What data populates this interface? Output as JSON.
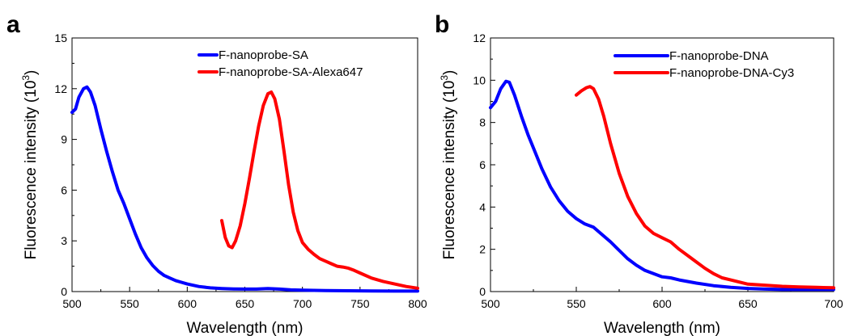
{
  "chart_data": [
    {
      "type": "line",
      "panel_label": "a",
      "xlabel": "Wavelength (nm)",
      "ylabel": "Fluorescence intensity (10",
      "ylabel_sup": "3",
      "ylabel_end": ")",
      "xlim": [
        500,
        800
      ],
      "ylim": [
        0,
        15
      ],
      "xticks": [
        "500",
        "550",
        "600",
        "650",
        "700",
        "750",
        "800"
      ],
      "yticks": [
        "0",
        "3",
        "6",
        "9",
        "12",
        "15"
      ],
      "legend_position": "top-right",
      "series": [
        {
          "name": "F-nanoprobe-SA",
          "color": "#0000ff",
          "x": [
            500,
            503,
            506,
            510,
            513,
            516,
            520,
            525,
            530,
            535,
            540,
            545,
            550,
            555,
            560,
            565,
            570,
            575,
            580,
            585,
            590,
            595,
            600,
            610,
            620,
            630,
            640,
            650,
            660,
            670,
            680,
            690,
            700,
            720,
            740,
            760,
            780,
            800
          ],
          "y": [
            10.6,
            10.8,
            11.5,
            12.0,
            12.1,
            11.8,
            11.0,
            9.6,
            8.3,
            7.1,
            6.0,
            5.2,
            4.3,
            3.4,
            2.6,
            2.0,
            1.55,
            1.2,
            0.95,
            0.8,
            0.65,
            0.55,
            0.45,
            0.3,
            0.22,
            0.18,
            0.16,
            0.15,
            0.15,
            0.18,
            0.15,
            0.1,
            0.08,
            0.06,
            0.05,
            0.04,
            0.03,
            0.03
          ]
        },
        {
          "name": "F-nanoprobe-SA-Alexa647",
          "color": "#ff0000",
          "x": [
            630,
            633,
            636,
            639,
            642,
            646,
            650,
            654,
            658,
            662,
            666,
            670,
            673,
            676,
            680,
            684,
            688,
            692,
            696,
            700,
            705,
            710,
            715,
            720,
            725,
            730,
            735,
            740,
            745,
            750,
            760,
            770,
            780,
            790,
            800
          ],
          "y": [
            4.2,
            3.2,
            2.7,
            2.6,
            3.0,
            3.9,
            5.2,
            6.7,
            8.3,
            9.8,
            11.0,
            11.7,
            11.8,
            11.4,
            10.2,
            8.3,
            6.3,
            4.7,
            3.6,
            2.9,
            2.5,
            2.2,
            1.95,
            1.8,
            1.65,
            1.5,
            1.45,
            1.38,
            1.25,
            1.1,
            0.8,
            0.6,
            0.45,
            0.3,
            0.2
          ]
        }
      ]
    },
    {
      "type": "line",
      "panel_label": "b",
      "xlabel": "Wavelength (nm)",
      "ylabel": "Fluorescence intensity (10",
      "ylabel_sup": "3",
      "ylabel_end": ")",
      "xlim": [
        500,
        700
      ],
      "ylim": [
        0,
        12
      ],
      "xticks": [
        "500",
        "550",
        "600",
        "650",
        "700"
      ],
      "yticks": [
        "0",
        "2",
        "4",
        "6",
        "8",
        "10",
        "12"
      ],
      "legend_position": "top-right",
      "series": [
        {
          "name": "F-nanoprobe-DNA",
          "color": "#0000ff",
          "x": [
            500,
            503,
            506,
            509,
            511,
            514,
            518,
            522,
            526,
            530,
            535,
            540,
            545,
            550,
            555,
            560,
            565,
            570,
            575,
            580,
            585,
            590,
            595,
            600,
            605,
            610,
            620,
            630,
            640,
            650,
            660,
            670,
            680,
            690,
            700
          ],
          "y": [
            8.7,
            9.0,
            9.6,
            9.95,
            9.9,
            9.3,
            8.3,
            7.4,
            6.6,
            5.8,
            4.95,
            4.3,
            3.8,
            3.45,
            3.2,
            3.05,
            2.7,
            2.35,
            1.95,
            1.55,
            1.25,
            1.0,
            0.85,
            0.7,
            0.65,
            0.55,
            0.4,
            0.28,
            0.2,
            0.15,
            0.12,
            0.1,
            0.1,
            0.1,
            0.1
          ]
        },
        {
          "name": "F-nanoprobe-DNA-Cy3",
          "color": "#ff0000",
          "x": [
            550,
            553,
            556,
            558,
            560,
            563,
            566,
            570,
            575,
            580,
            585,
            590,
            595,
            600,
            605,
            610,
            615,
            620,
            625,
            630,
            635,
            640,
            645,
            650,
            660,
            670,
            680,
            690,
            700
          ],
          "y": [
            9.3,
            9.5,
            9.65,
            9.7,
            9.6,
            9.1,
            8.3,
            7.0,
            5.6,
            4.5,
            3.7,
            3.1,
            2.75,
            2.55,
            2.35,
            2.0,
            1.7,
            1.4,
            1.1,
            0.85,
            0.65,
            0.55,
            0.45,
            0.35,
            0.3,
            0.25,
            0.22,
            0.2,
            0.18
          ]
        }
      ]
    }
  ]
}
